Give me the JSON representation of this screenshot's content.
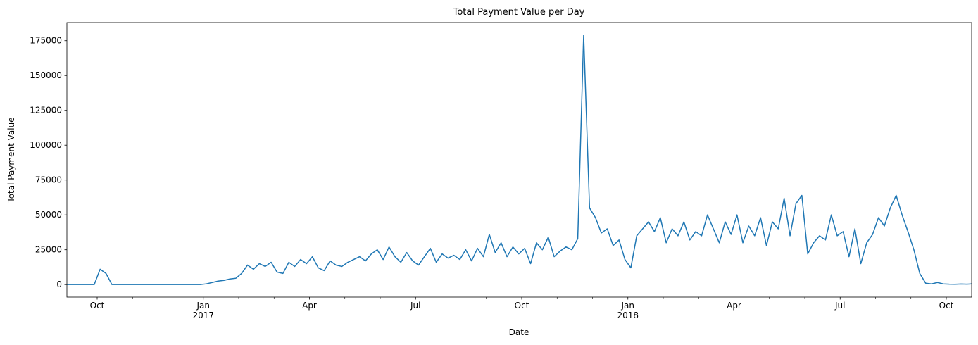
{
  "chart_data": {
    "type": "line",
    "title": "Total Payment Value per Day",
    "xlabel": "Date",
    "ylabel": "Total Payment Value",
    "x": [
      "2016-09",
      "2016-10",
      "2016-11",
      "2016-12",
      "2017-01",
      "2017-02",
      "2017-03",
      "2017-04",
      "2017-05",
      "2017-06",
      "2017-07",
      "2017-08",
      "2017-09",
      "2017-10",
      "2017-11",
      "2017-12",
      "2018-01",
      "2018-02",
      "2018-03",
      "2018-04",
      "2018-05",
      "2018-06",
      "2018-07",
      "2018-08",
      "2018-09",
      "2018-10"
    ],
    "series": [
      {
        "name": "Total Payment Value",
        "color": "#1f77b4",
        "values": [
          [
            0,
            0,
            0,
            0,
            0,
            0
          ],
          [
            11000,
            8000,
            0,
            0,
            0,
            0
          ],
          [
            0,
            0,
            0,
            0,
            0,
            0
          ],
          [
            0,
            0,
            0,
            0,
            0,
            0
          ],
          [
            500,
            1500,
            2500,
            3000,
            4000,
            4500
          ],
          [
            8000,
            14000,
            11000,
            15000,
            13000,
            16000
          ],
          [
            9000,
            8000,
            16000,
            13000,
            18000,
            15000
          ],
          [
            20000,
            12000,
            10000,
            17000,
            14000,
            13000
          ],
          [
            16000,
            18000,
            20000,
            17000,
            22000,
            25000
          ],
          [
            18000,
            27000,
            20000,
            16000,
            23000,
            17000
          ],
          [
            14000,
            20000,
            26000,
            16000,
            22000,
            19000
          ],
          [
            21000,
            18000,
            25000,
            17000,
            26000,
            20000
          ],
          [
            36000,
            23000,
            30000,
            20000,
            27000,
            22000
          ],
          [
            26000,
            15000,
            30000,
            25000,
            34000,
            20000
          ],
          [
            24000,
            27000,
            25000,
            33000,
            179000,
            55000
          ],
          [
            48000,
            37000,
            40000,
            28000,
            32000,
            18000
          ],
          [
            12000,
            35000,
            40000,
            45000,
            38000,
            48000
          ],
          [
            30000,
            40000,
            35000,
            45000,
            32000,
            38000
          ],
          [
            35000,
            50000,
            40000,
            30000,
            45000,
            36000
          ],
          [
            50000,
            30000,
            42000,
            35000,
            48000,
            28000
          ],
          [
            45000,
            40000,
            62000,
            35000,
            58000,
            64000
          ],
          [
            22000,
            30000,
            35000,
            32000,
            50000,
            35000
          ],
          [
            38000,
            20000,
            40000,
            15000,
            30000,
            36000
          ],
          [
            48000,
            42000,
            55000,
            64000,
            50000,
            38000
          ],
          [
            25000,
            8000,
            1000,
            500,
            1500,
            500
          ],
          [
            300,
            200,
            400,
            300,
            500,
            300
          ]
        ]
      }
    ],
    "xticks": [
      {
        "value": "2016-10",
        "label": "Oct"
      },
      {
        "value": "2017-01",
        "label": "Jan\n2017"
      },
      {
        "value": "2017-04",
        "label": "Apr"
      },
      {
        "value": "2017-07",
        "label": "Jul"
      },
      {
        "value": "2017-10",
        "label": "Oct"
      },
      {
        "value": "2018-01",
        "label": "Jan\n2018"
      },
      {
        "value": "2018-04",
        "label": "Apr"
      },
      {
        "value": "2018-07",
        "label": "Jul"
      },
      {
        "value": "2018-10",
        "label": "Oct"
      }
    ],
    "ylim": [
      -9000,
      188000
    ],
    "yticks": [
      0,
      25000,
      50000,
      75000,
      100000,
      125000,
      150000,
      175000
    ],
    "grid": false
  }
}
